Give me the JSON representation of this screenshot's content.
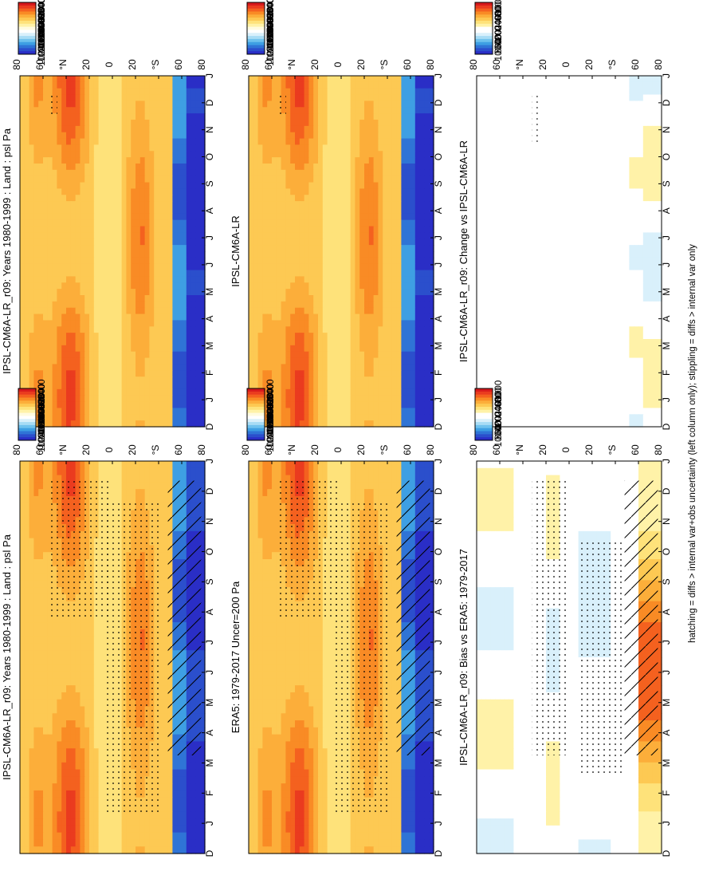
{
  "footnote": "hatching = diffs > internal var+obs uncertainty (left column only); stippling = diffs > internal var only",
  "month_labels": [
    "D",
    "J",
    "F",
    "M",
    "A",
    "M",
    "J",
    "J",
    "A",
    "S",
    "O",
    "N",
    "D",
    "J"
  ],
  "lat_ticks": [
    "80",
    "60",
    "°N",
    "20",
    "0",
    "20",
    "°S",
    "60",
    "80"
  ],
  "abs_colorbar": {
    "labels": [
      "102400",
      "102000",
      "101600",
      "101200",
      "100800",
      "100400",
      "100000",
      "99600",
      "99200",
      "98800",
      "98400"
    ],
    "colors": [
      "#d7191c",
      "#ea3b1f",
      "#f4611f",
      "#f98b25",
      "#fcae3a",
      "#fdc953",
      "#fee27a",
      "#fff2a8",
      "#fffbe0",
      "#ffffff",
      "#d9f0fb",
      "#a8dcf5",
      "#6fc2ee",
      "#3e9fe3",
      "#2f74d6",
      "#2b4fcc",
      "#2a2ec6"
    ]
  },
  "diff_colorbar": {
    "labels": [
      "1000",
      "800",
      "600",
      "400",
      "200",
      "0",
      "-200",
      "-400",
      "-600",
      "-800",
      "-1000"
    ],
    "colors": [
      "#d7191c",
      "#ea3b1f",
      "#f4611f",
      "#f98b25",
      "#fcae3a",
      "#fdc953",
      "#fee27a",
      "#fff2a8",
      "#ffffff",
      "#ffffff",
      "#d9f0fb",
      "#a8dcf5",
      "#6fc2ee",
      "#3e9fe3",
      "#2f74d6",
      "#2b4fcc",
      "#2a2ec6"
    ]
  },
  "chart_data": [
    {
      "id": "p1",
      "kind": "abs",
      "type": "heatmap",
      "title": "IPSL-CM6A-LR_r09: Years 1980-1999 : Land : psl Pa",
      "hatching": true,
      "stippling": true
    },
    {
      "id": "p2",
      "kind": "abs",
      "type": "heatmap",
      "title": "IPSL-CM6A-LR_r09: Years 1980-1999 : Land : psl Pa",
      "hatching": false,
      "stippling": true
    },
    {
      "id": "p3",
      "kind": "abs",
      "type": "heatmap",
      "title": "ERA5: 1979-2017 Uncer=200 Pa",
      "hatching": true,
      "stippling": true
    },
    {
      "id": "p4",
      "kind": "abs",
      "type": "heatmap",
      "title": "IPSL-CM6A-LR",
      "hatching": false,
      "stippling": true
    },
    {
      "id": "p5",
      "kind": "diff",
      "type": "heatmap",
      "title": "IPSL-CM6A-LR_r09: Bias vs ERA5: 1979-2017",
      "hatching": true,
      "stippling": true
    },
    {
      "id": "p6",
      "kind": "diff",
      "type": "heatmap",
      "title": "IPSL-CM6A-LR_r09: Change vs IPSL-CM6A-LR",
      "hatching": false,
      "stippling": true
    }
  ]
}
